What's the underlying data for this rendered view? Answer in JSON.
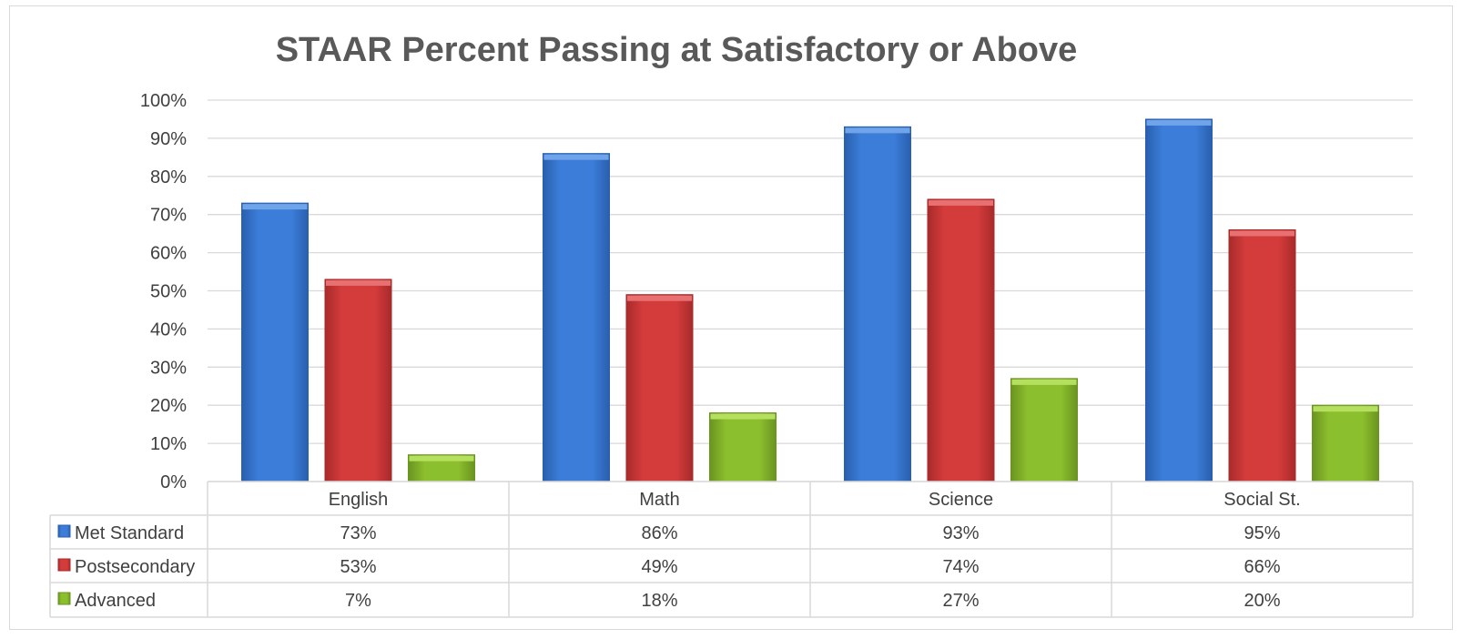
{
  "chart_data": {
    "type": "bar",
    "title": "STAAR Percent Passing at Satisfactory or Above",
    "categories": [
      "English",
      "Math",
      "Science",
      "Social St."
    ],
    "series": [
      {
        "name": "Met Standard",
        "values": [
          73,
          86,
          93,
          95
        ],
        "labels": [
          "73%",
          "86%",
          "93%",
          "95%"
        ],
        "color": "#3b7dd8",
        "dark": "#2a5fae",
        "light": "#6fa3ea"
      },
      {
        "name": "Postsecondary",
        "values": [
          53,
          49,
          74,
          66
        ],
        "labels": [
          "53%",
          "49%",
          "74%",
          "66%"
        ],
        "color": "#d43c3c",
        "dark": "#a82a2a",
        "light": "#e87070"
      },
      {
        "name": "Advanced",
        "values": [
          7,
          18,
          27,
          20
        ],
        "labels": [
          "7%",
          "18%",
          "27%",
          "20%"
        ],
        "color": "#8cbf2e",
        "dark": "#6a9420",
        "light": "#b5df5e"
      }
    ],
    "ylim": [
      0,
      100
    ],
    "yticks": [
      "0%",
      "10%",
      "20%",
      "30%",
      "40%",
      "50%",
      "60%",
      "70%",
      "80%",
      "90%",
      "100%"
    ],
    "grid": true,
    "legend": "data-table"
  }
}
